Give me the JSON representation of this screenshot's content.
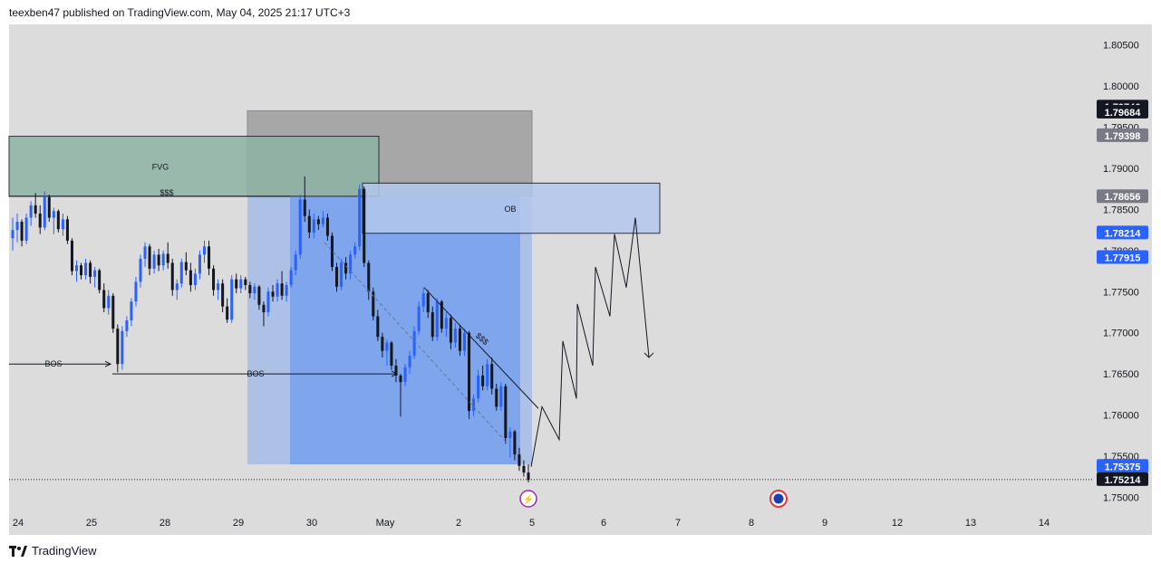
{
  "header": {
    "published": "teexben47 published on TradingView.com, May 04, 2025 21:17 UTC+3"
  },
  "footer": {
    "brand": "TradingView"
  },
  "colors": {
    "chart_bg": "#dcdcdc",
    "candle_up": "#2962ff",
    "candle_down": "#131722",
    "fvg_box": "#8fb3a5",
    "premium_box": "#9e9e9e",
    "entry_box": "#6f9cf0",
    "ob_box": "#b3c8ee",
    "label_dark": "#131722",
    "label_gray": "#787b86",
    "label_blue": "#2962ff"
  },
  "chart_data": {
    "type": "candlestick",
    "symbol_timeframe": "",
    "x_ticks": [
      "24",
      "25",
      "28",
      "29",
      "30",
      "May",
      "2",
      "5",
      "6",
      "7",
      "8",
      "9",
      "12",
      "13",
      "14"
    ],
    "y_ticks": [
      "1.80500",
      "1.80000",
      "1.79500",
      "1.79000",
      "1.78500",
      "1.78000",
      "1.77500",
      "1.77000",
      "1.76500",
      "1.76000",
      "1.75500",
      "1.75000"
    ],
    "ylim": [
      1.7485,
      1.8075
    ],
    "price_labels": [
      {
        "value": "1.79746",
        "style": "dark"
      },
      {
        "value": "1.79684",
        "style": "dark"
      },
      {
        "value": "1.79398",
        "style": "gray"
      },
      {
        "value": "1.78656",
        "style": "gray"
      },
      {
        "value": "1.78214",
        "style": "blue"
      },
      {
        "value": "1.77915",
        "style": "blue"
      },
      {
        "value": "1.75375",
        "style": "blue"
      },
      {
        "value": "1.75214",
        "style": "dark"
      }
    ],
    "last_price": 1.75214,
    "annotations": {
      "fvg": "FVG",
      "ob": "OB",
      "bos_left": "BOS",
      "bos_right": "BOS",
      "liquidity_top": "$$$",
      "liquidity_trend": "$$$"
    },
    "candles": [
      [
        1.7815,
        1.784,
        1.78,
        1.7825
      ],
      [
        1.7825,
        1.7845,
        1.781,
        1.7835
      ],
      [
        1.7835,
        1.7838,
        1.7805,
        1.7812
      ],
      [
        1.7812,
        1.7845,
        1.7808,
        1.784
      ],
      [
        1.784,
        1.786,
        1.783,
        1.7855
      ],
      [
        1.7855,
        1.787,
        1.784,
        1.7845
      ],
      [
        1.7845,
        1.7855,
        1.782,
        1.7828
      ],
      [
        1.7828,
        1.7872,
        1.7825,
        1.7865
      ],
      [
        1.7865,
        1.7868,
        1.7835,
        1.784
      ],
      [
        1.784,
        1.7852,
        1.782,
        1.7848
      ],
      [
        1.7848,
        1.785,
        1.7822,
        1.7826
      ],
      [
        1.7826,
        1.7845,
        1.7818,
        1.7838
      ],
      [
        1.7838,
        1.7842,
        1.7808,
        1.7812
      ],
      [
        1.7812,
        1.7815,
        1.777,
        1.7775
      ],
      [
        1.7775,
        1.7788,
        1.7762,
        1.7782
      ],
      [
        1.7782,
        1.7785,
        1.7765,
        1.777
      ],
      [
        1.777,
        1.779,
        1.7765,
        1.7785
      ],
      [
        1.7785,
        1.7788,
        1.776,
        1.7768
      ],
      [
        1.7768,
        1.778,
        1.7755,
        1.7776
      ],
      [
        1.7776,
        1.7778,
        1.7748,
        1.7752
      ],
      [
        1.7752,
        1.776,
        1.7725,
        1.773
      ],
      [
        1.773,
        1.7752,
        1.7722,
        1.7745
      ],
      [
        1.7745,
        1.7748,
        1.77,
        1.7705
      ],
      [
        1.7705,
        1.771,
        1.7652,
        1.7662
      ],
      [
        1.7662,
        1.7708,
        1.7655,
        1.7702
      ],
      [
        1.7702,
        1.772,
        1.7695,
        1.7715
      ],
      [
        1.7715,
        1.7742,
        1.7708,
        1.7738
      ],
      [
        1.7738,
        1.7768,
        1.7732,
        1.7762
      ],
      [
        1.7762,
        1.7795,
        1.7755,
        1.779
      ],
      [
        1.779,
        1.781,
        1.778,
        1.7805
      ],
      [
        1.7805,
        1.7808,
        1.777,
        1.7778
      ],
      [
        1.7778,
        1.78,
        1.7772,
        1.7795
      ],
      [
        1.7795,
        1.7802,
        1.7775,
        1.7782
      ],
      [
        1.7782,
        1.78,
        1.7776,
        1.7796
      ],
      [
        1.7796,
        1.781,
        1.7778,
        1.7785
      ],
      [
        1.7785,
        1.779,
        1.7745,
        1.7752
      ],
      [
        1.7752,
        1.7765,
        1.774,
        1.776
      ],
      [
        1.776,
        1.779,
        1.7755,
        1.7786
      ],
      [
        1.7786,
        1.7798,
        1.777,
        1.7776
      ],
      [
        1.7776,
        1.7785,
        1.775,
        1.7758
      ],
      [
        1.7758,
        1.7778,
        1.7752,
        1.7772
      ],
      [
        1.7772,
        1.78,
        1.7765,
        1.7795
      ],
      [
        1.7795,
        1.7812,
        1.7785,
        1.7805
      ],
      [
        1.7805,
        1.7812,
        1.777,
        1.7778
      ],
      [
        1.7778,
        1.7782,
        1.7745,
        1.7752
      ],
      [
        1.7752,
        1.7765,
        1.774,
        1.776
      ],
      [
        1.776,
        1.7765,
        1.7725,
        1.7732
      ],
      [
        1.7732,
        1.7742,
        1.7712,
        1.7716
      ],
      [
        1.7716,
        1.777,
        1.7712,
        1.7765
      ],
      [
        1.7765,
        1.7772,
        1.7748,
        1.7754
      ],
      [
        1.7754,
        1.777,
        1.7748,
        1.7765
      ],
      [
        1.7765,
        1.7768,
        1.7752,
        1.7758
      ],
      [
        1.7758,
        1.7762,
        1.7742,
        1.7748
      ],
      [
        1.7748,
        1.776,
        1.774,
        1.7756
      ],
      [
        1.7756,
        1.7758,
        1.7728,
        1.7734
      ],
      [
        1.7734,
        1.7738,
        1.7708,
        1.7725
      ],
      [
        1.7725,
        1.7755,
        1.772,
        1.775
      ],
      [
        1.775,
        1.7758,
        1.7738,
        1.7744
      ],
      [
        1.7744,
        1.7765,
        1.7738,
        1.776
      ],
      [
        1.776,
        1.7775,
        1.774,
        1.7745
      ],
      [
        1.7745,
        1.7762,
        1.7738,
        1.7758
      ],
      [
        1.7758,
        1.778,
        1.7755,
        1.7776
      ],
      [
        1.7776,
        1.78,
        1.777,
        1.7795
      ],
      [
        1.7795,
        1.7868,
        1.779,
        1.7862
      ],
      [
        1.7862,
        1.789,
        1.7835,
        1.7842
      ],
      [
        1.7842,
        1.785,
        1.7815,
        1.7822
      ],
      [
        1.7822,
        1.7845,
        1.7815,
        1.7838
      ],
      [
        1.7838,
        1.7842,
        1.7825,
        1.7832
      ],
      [
        1.7832,
        1.7848,
        1.7828,
        1.784
      ],
      [
        1.784,
        1.7845,
        1.7812,
        1.7818
      ],
      [
        1.7818,
        1.7822,
        1.7775,
        1.778
      ],
      [
        1.778,
        1.7785,
        1.775,
        1.7756
      ],
      [
        1.7756,
        1.779,
        1.7752,
        1.7785
      ],
      [
        1.7785,
        1.7792,
        1.7765,
        1.7772
      ],
      [
        1.7772,
        1.78,
        1.7765,
        1.7795
      ],
      [
        1.7795,
        1.781,
        1.779,
        1.7805
      ],
      [
        1.7805,
        1.788,
        1.78,
        1.7875
      ],
      [
        1.7875,
        1.7878,
        1.778,
        1.7785
      ],
      [
        1.7785,
        1.7788,
        1.774,
        1.775
      ],
      [
        1.775,
        1.7755,
        1.7715,
        1.772
      ],
      [
        1.772,
        1.7728,
        1.769,
        1.7695
      ],
      [
        1.7695,
        1.77,
        1.767,
        1.7678
      ],
      [
        1.7678,
        1.7692,
        1.766,
        1.7688
      ],
      [
        1.7688,
        1.769,
        1.7655,
        1.766
      ],
      [
        1.766,
        1.7668,
        1.764,
        1.7648
      ],
      [
        1.7648,
        1.765,
        1.7598,
        1.764
      ],
      [
        1.764,
        1.7662,
        1.7635,
        1.7658
      ],
      [
        1.7658,
        1.7678,
        1.765,
        1.7672
      ],
      [
        1.7672,
        1.7708,
        1.7668,
        1.7702
      ],
      [
        1.7702,
        1.7738,
        1.7698,
        1.7732
      ],
      [
        1.7732,
        1.7755,
        1.7725,
        1.7748
      ],
      [
        1.7748,
        1.7752,
        1.7718,
        1.7725
      ],
      [
        1.7725,
        1.7732,
        1.769,
        1.7695
      ],
      [
        1.7695,
        1.7742,
        1.769,
        1.7738
      ],
      [
        1.7738,
        1.774,
        1.77,
        1.7705
      ],
      [
        1.7705,
        1.7725,
        1.7695,
        1.7718
      ],
      [
        1.7718,
        1.7722,
        1.768,
        1.7688
      ],
      [
        1.7688,
        1.7712,
        1.7682,
        1.7705
      ],
      [
        1.7705,
        1.771,
        1.7672,
        1.7678
      ],
      [
        1.7678,
        1.7705,
        1.7672,
        1.77
      ],
      [
        1.77,
        1.7702,
        1.7595,
        1.7605
      ],
      [
        1.7605,
        1.7625,
        1.7598,
        1.762
      ],
      [
        1.762,
        1.7655,
        1.7615,
        1.7648
      ],
      [
        1.7648,
        1.766,
        1.763,
        1.7635
      ],
      [
        1.7635,
        1.7668,
        1.763,
        1.7662
      ],
      [
        1.7662,
        1.767,
        1.7625,
        1.7632
      ],
      [
        1.7632,
        1.7638,
        1.7605,
        1.761
      ],
      [
        1.761,
        1.764,
        1.7605,
        1.7635
      ],
      [
        1.7635,
        1.7638,
        1.7565,
        1.7572
      ],
      [
        1.7572,
        1.7585,
        1.7548,
        1.758
      ],
      [
        1.758,
        1.7582,
        1.7545,
        1.7552
      ],
      [
        1.7552,
        1.756,
        1.7532,
        1.7538
      ],
      [
        1.7538,
        1.7545,
        1.7525,
        1.753
      ],
      [
        1.753,
        1.754,
        1.7518,
        1.7521
      ]
    ],
    "projection_path": [
      [
        1.7537,
        1.761,
        1.757,
        1.769,
        1.762,
        1.7735,
        1.766,
        1.778,
        1.772,
        1.782,
        1.7755,
        1.784,
        1.767
      ]
    ]
  },
  "event_markers": [
    {
      "name": "lightning-event",
      "glyph": "⚡"
    },
    {
      "name": "economic-event",
      "glyph": "◉"
    }
  ]
}
